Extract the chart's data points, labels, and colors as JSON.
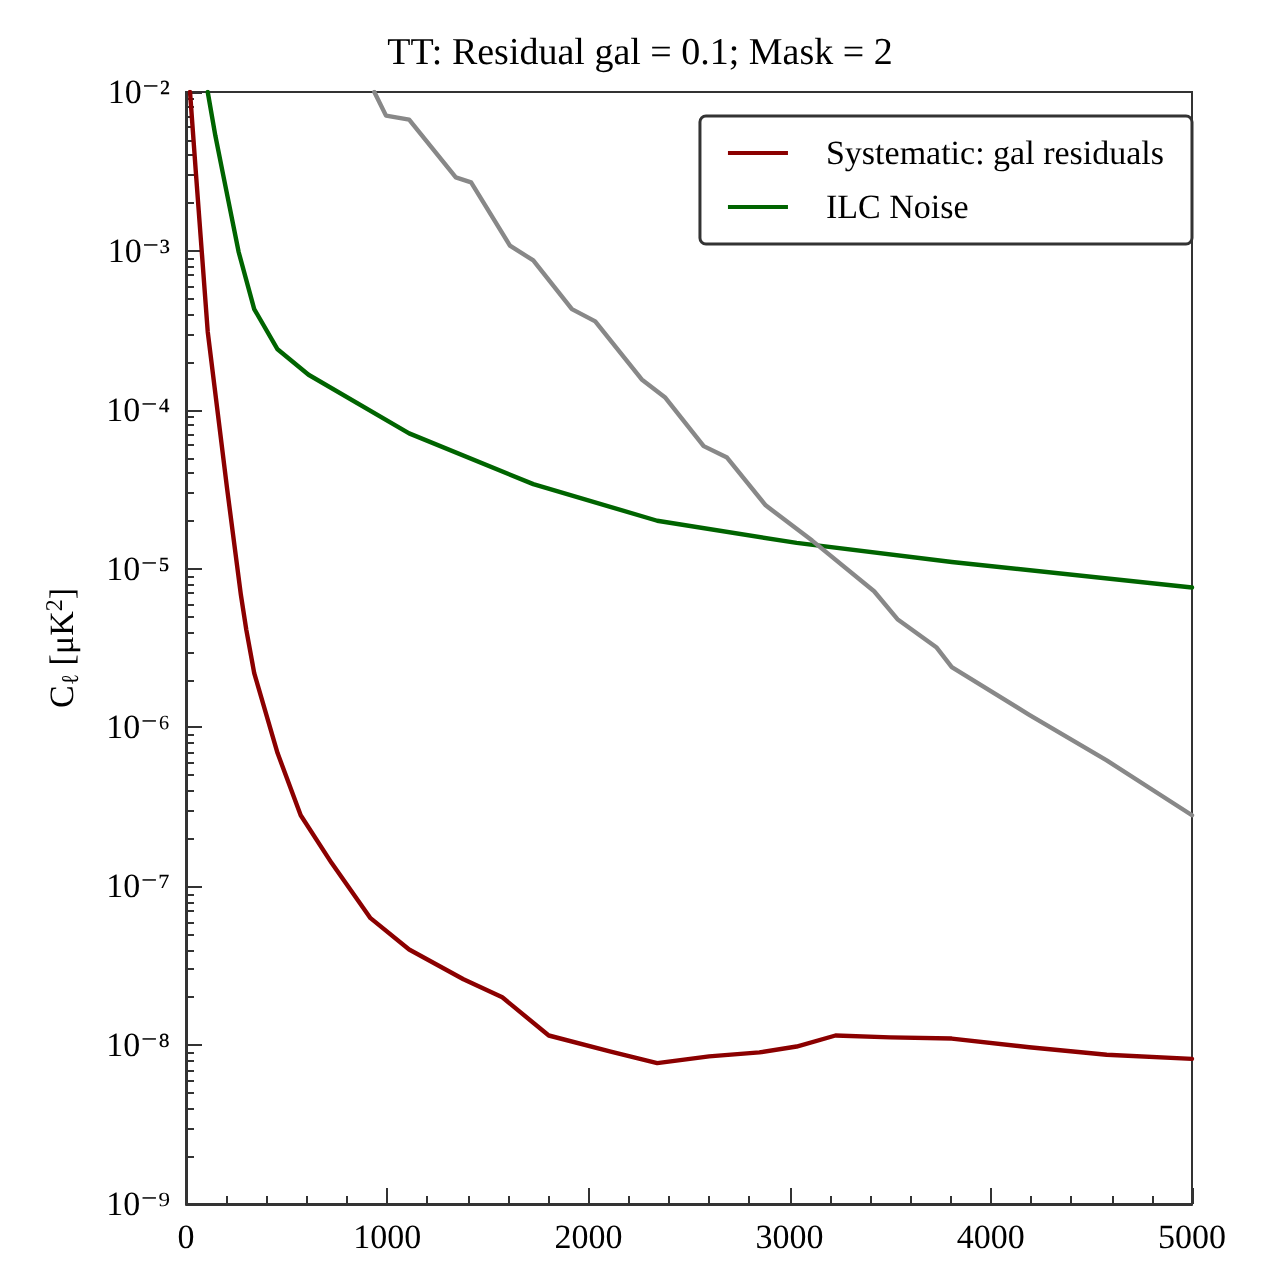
{
  "chart_data": {
    "type": "line",
    "title": "TT: Residual gal = 0.1; Mask = 2",
    "ylabel": "C$_{ℓ}$ [μK$^{2}$]",
    "xlim": [
      0,
      5000
    ],
    "xticks": [
      0,
      1000,
      2000,
      3000,
      4000,
      5000
    ],
    "ylim": [
      1e-09,
      0.01
    ],
    "yticks": [
      {
        "value": 1e-09,
        "label": "10⁻⁹"
      },
      {
        "value": 1e-08,
        "label": "10⁻⁸"
      },
      {
        "value": 1e-07,
        "label": "10⁻⁷"
      },
      {
        "value": 1e-06,
        "label": "10⁻⁶"
      },
      {
        "value": 1e-05,
        "label": "10⁻⁵"
      },
      {
        "value": 0.0001,
        "label": "10⁻⁴"
      },
      {
        "value": 0.001,
        "label": "10⁻³"
      },
      {
        "value": 0.01,
        "label": "10⁻²"
      }
    ],
    "log": "y",
    "grid": false,
    "legend": "top right",
    "line_style": "solid",
    "marker": "none",
    "series": [
      {
        "name": "Systematic: gal residuals",
        "color": "#8b0000",
        "x": [
          20,
          50,
          108,
          204,
          273,
          300,
          339,
          455,
          570,
          724,
          917,
          1109,
          1379,
          1572,
          1803,
          2111,
          2342,
          2600,
          2850,
          3035,
          3228,
          3500,
          3806,
          4191,
          4576,
          5000
        ],
        "values": [
          0.01,
          0.003,
          0.00031,
          3.2e-05,
          6.8e-06,
          4.1e-06,
          2.2e-06,
          6.9e-07,
          2.8e-07,
          1.4e-07,
          6.3e-08,
          4e-08,
          2.6e-08,
          2e-08,
          1.15e-08,
          9.1e-09,
          7.7e-09,
          8.5e-09,
          9e-09,
          9.8e-09,
          1.15e-08,
          1.12e-08,
          1.1e-08,
          9.7e-09,
          8.7e-09,
          8.2e-09
        ]
      },
      {
        "name": "ILC Noise",
        "color": "#006400",
        "x": [
          108,
          146,
          185,
          262,
          339,
          455,
          609,
          1109,
          1726,
          2342,
          3035,
          3806,
          5000
        ],
        "values": [
          0.01,
          0.0053,
          0.003,
          0.00098,
          0.00043,
          0.00024,
          0.000166,
          7.1e-05,
          3.4e-05,
          2e-05,
          1.45e-05,
          1.1e-05,
          7.6e-06
        ]
      },
      {
        "color": "#888888",
        "x": [
          936,
          994,
          1109,
          1341,
          1417,
          1610,
          1726,
          1918,
          2034,
          2265,
          2380,
          2573,
          2689,
          2881,
          3112,
          3420,
          3536,
          3729,
          3806,
          4191,
          4576,
          5000
        ],
        "values": [
          0.01,
          0.0071,
          0.0067,
          0.0029,
          0.0027,
          0.00108,
          0.00087,
          0.00043,
          0.00036,
          0.000155,
          0.00012,
          5.9e-05,
          5e-05,
          2.5e-05,
          1.5e-05,
          7.2e-06,
          4.8e-06,
          3.2e-06,
          2.4e-06,
          1.2e-06,
          6.2e-07,
          2.8e-07
        ]
      }
    ]
  }
}
